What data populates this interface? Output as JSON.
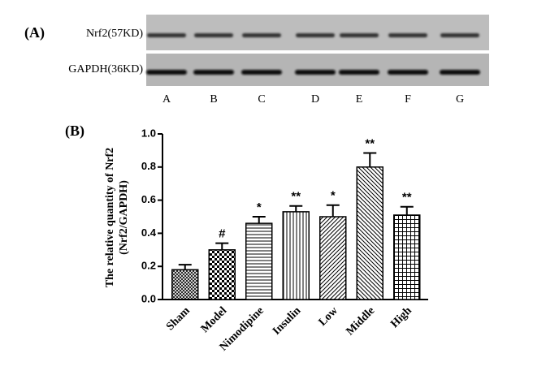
{
  "panel_a": {
    "label": "(A)",
    "rows": [
      "Nrf2(57KD)",
      "GAPDH(36KD)"
    ],
    "lanes": [
      "A",
      "B",
      "C",
      "D",
      "E",
      "F",
      "G"
    ]
  },
  "chart_data": {
    "type": "bar",
    "panel_label": "(B)",
    "ylabel": [
      "The relative quantity of Nrf2",
      "(Nrf2/GAPDH)"
    ],
    "categories": [
      "Sham",
      "Model",
      "Nimodipine",
      "Insulin",
      "Low",
      "Middle",
      "High"
    ],
    "values": [
      0.18,
      0.3,
      0.46,
      0.53,
      0.5,
      0.8,
      0.51
    ],
    "errors": [
      0.03,
      0.04,
      0.04,
      0.035,
      0.07,
      0.085,
      0.05
    ],
    "annotations": [
      null,
      "#",
      "*",
      "**",
      "*",
      "**",
      "**"
    ],
    "patterns": [
      "crosshatch",
      "checker",
      "horizontal",
      "vertical",
      "diagonal",
      "diagonal-back",
      "grid"
    ],
    "color": "#000000",
    "ylim": [
      0,
      1
    ],
    "yticks": [
      {
        "value": 0,
        "label": "0.0"
      },
      0.2,
      0.4,
      0.6,
      0.8,
      {
        "value": 1,
        "label": "1.0"
      }
    ]
  }
}
